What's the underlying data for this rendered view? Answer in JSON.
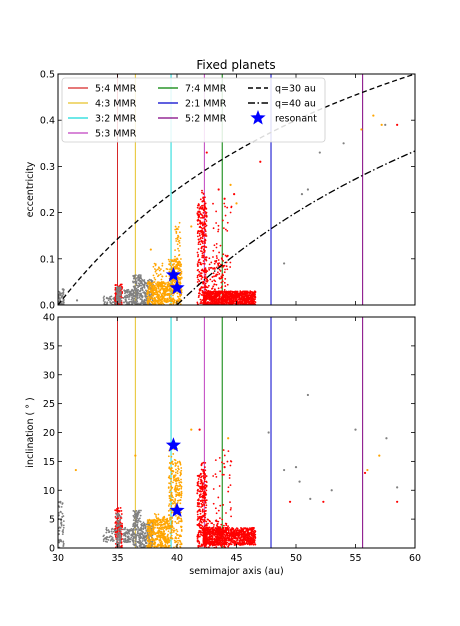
{
  "figure": {
    "title": "Fixed planets"
  },
  "chart_data": [
    {
      "type": "scatter",
      "panel": "top",
      "title": "Fixed planets",
      "xlabel": "",
      "ylabel": "eccentricity",
      "xlim": [
        30,
        60
      ],
      "ylim": [
        0,
        0.5
      ],
      "xticks": [
        30,
        35,
        40,
        45,
        50,
        55,
        60
      ],
      "yticks": [
        "0.0",
        "0.1",
        "0.2",
        "0.3",
        "0.4",
        "0.5"
      ],
      "grid": false,
      "legend_placement": "top (spanning width)",
      "resonances": [
        {
          "name": "5:4 MMR",
          "a": 35.0,
          "color": "#d62728"
        },
        {
          "name": "4:3 MMR",
          "a": 36.5,
          "color": "#e6c229"
        },
        {
          "name": "3:2 MMR",
          "a": 39.5,
          "color": "#17d9d9"
        },
        {
          "name": "5:3 MMR",
          "a": 42.3,
          "color": "#c040c0"
        },
        {
          "name": "7:4 MMR",
          "a": 43.8,
          "color": "#008000"
        },
        {
          "name": "2:1 MMR",
          "a": 47.9,
          "color": "#0000cc"
        },
        {
          "name": "5:2 MMR",
          "a": 55.6,
          "color": "#800080"
        }
      ],
      "curves": [
        {
          "name": "q=30 au",
          "style": "dashed",
          "q": 30
        },
        {
          "name": "q=40 au",
          "style": "dashdot",
          "q": 40
        }
      ],
      "resonant_points": {
        "name": "resonant",
        "points": [
          [
            39.7,
            0.065
          ],
          [
            40.0,
            0.037
          ]
        ]
      },
      "sparse_points": {
        "gray": [
          [
            31.6,
            0.01
          ],
          [
            49.0,
            0.09
          ],
          [
            51.0,
            0.25
          ],
          [
            52.0,
            0.33
          ],
          [
            54.0,
            0.35
          ],
          [
            57.5,
            0.39
          ],
          [
            50.5,
            0.24
          ]
        ],
        "orange": [
          [
            37.8,
            0.12
          ],
          [
            41.2,
            0.17
          ],
          [
            44.5,
            0.26
          ],
          [
            45.0,
            0.22
          ],
          [
            55.5,
            0.38
          ],
          [
            56.5,
            0.41
          ],
          [
            57.2,
            0.39
          ]
        ],
        "red": [
          [
            42.5,
            0.33
          ],
          [
            43.5,
            0.25
          ],
          [
            44.0,
            0.23
          ],
          [
            44.8,
            0.24
          ],
          [
            47.0,
            0.31
          ],
          [
            58.5,
            0.39
          ]
        ]
      }
    },
    {
      "type": "scatter",
      "panel": "bottom",
      "title": "",
      "xlabel": "semimajor axis (au)",
      "ylabel": "inclination ( ° )",
      "xlim": [
        30,
        60
      ],
      "ylim": [
        0,
        40
      ],
      "xticks": [
        30,
        35,
        40,
        45,
        50,
        55,
        60
      ],
      "yticks": [
        0,
        5,
        10,
        15,
        20,
        25,
        30,
        35,
        40
      ],
      "grid": false,
      "resonances": [
        {
          "name": "5:4 MMR",
          "a": 35.0,
          "color": "#d62728"
        },
        {
          "name": "4:3 MMR",
          "a": 36.5,
          "color": "#e6c229"
        },
        {
          "name": "3:2 MMR",
          "a": 39.5,
          "color": "#17d9d9"
        },
        {
          "name": "5:3 MMR",
          "a": 42.3,
          "color": "#c040c0"
        },
        {
          "name": "7:4 MMR",
          "a": 43.8,
          "color": "#008000"
        },
        {
          "name": "2:1 MMR",
          "a": 47.9,
          "color": "#0000cc"
        },
        {
          "name": "5:2 MMR",
          "a": 55.6,
          "color": "#800080"
        }
      ],
      "resonant_points": {
        "name": "resonant",
        "points": [
          [
            39.7,
            17.8
          ],
          [
            40.0,
            6.5
          ]
        ]
      },
      "sparse_points": {
        "gray": [
          [
            30.2,
            8.0
          ],
          [
            47.7,
            20.0
          ],
          [
            49.0,
            13.5
          ],
          [
            50.0,
            14.0
          ],
          [
            51.0,
            26.5
          ],
          [
            51.2,
            8.5
          ],
          [
            53.0,
            10.0
          ],
          [
            55.0,
            20.5
          ],
          [
            57.6,
            19.0
          ],
          [
            58.5,
            10.5
          ],
          [
            50.3,
            11.5
          ]
        ],
        "orange": [
          [
            31.5,
            13.5
          ],
          [
            36.5,
            16.0
          ],
          [
            41.2,
            20.5
          ],
          [
            44.3,
            19.0
          ],
          [
            56.0,
            13.5
          ],
          [
            57.0,
            16.0
          ]
        ],
        "red": [
          [
            41.9,
            20.5
          ],
          [
            44.0,
            14.0
          ],
          [
            49.5,
            8.0
          ],
          [
            58.5,
            8.0
          ],
          [
            55.8,
            13.0
          ],
          [
            52.3,
            8.0
          ]
        ]
      }
    }
  ],
  "legend": {
    "entries": [
      {
        "label": "5:4 MMR",
        "kind": "line",
        "color": "#d62728"
      },
      {
        "label": "4:3 MMR",
        "kind": "line",
        "color": "#e6c229"
      },
      {
        "label": "3:2 MMR",
        "kind": "line",
        "color": "#17d9d9"
      },
      {
        "label": "5:3 MMR",
        "kind": "line",
        "color": "#c040c0"
      },
      {
        "label": "7:4 MMR",
        "kind": "line",
        "color": "#008000"
      },
      {
        "label": "2:1 MMR",
        "kind": "line",
        "color": "#0000cc"
      },
      {
        "label": "5:2 MMR",
        "kind": "line",
        "color": "#800080"
      },
      {
        "label": "q=30 au",
        "kind": "dashed",
        "color": "#000000"
      },
      {
        "label": "q=40 au",
        "kind": "dashdot",
        "color": "#000000"
      },
      {
        "label": "resonant",
        "kind": "star",
        "color": "#0000ff"
      }
    ]
  },
  "colors": {
    "gray": "#808080",
    "orange": "#ffa500",
    "red": "#ff0000",
    "resonant": "#0000ff"
  }
}
